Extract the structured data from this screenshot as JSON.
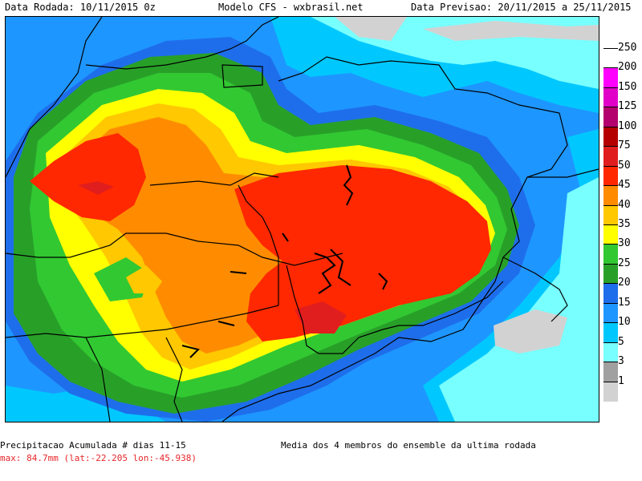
{
  "header": {
    "left": "Data Rodada: 10/11/2015 0z",
    "center": "Modelo CFS - wxbrasil.net",
    "right": "Data Previsao: 20/11/2015 a 25/11/2015"
  },
  "footer": {
    "title": "Precipitacao Acumulada # dias 11-15",
    "max": "max: 84.7mm (lat:-22.205 lon:-45.938)",
    "note": "Media dos 4 membros do ensemble da ultima rodada"
  },
  "legend": {
    "labels": [
      "250",
      "200",
      "150",
      "125",
      "100",
      "75",
      "50",
      "45",
      "40",
      "35",
      "30",
      "25",
      "20",
      "15",
      "10",
      "5",
      "3",
      "1"
    ],
    "colors": [
      "#ffffff",
      "#ff00ff",
      "#e000c8",
      "#b4006e",
      "#b40000",
      "#e11e1e",
      "#ff2800",
      "#ff8c00",
      "#ffc800",
      "#ffff00",
      "#32c832",
      "#28a028",
      "#1e6eeb",
      "#1e96ff",
      "#00c8ff",
      "#78ffff",
      "#a0a0a0",
      "#d2d2d2"
    ]
  },
  "map_colors": {
    "lightblue": "#78ffff",
    "cyan": "#00c8ff",
    "blue": "#1e96ff",
    "darkblue": "#1e6eeb",
    "darkgreen": "#28a028",
    "green": "#32c832",
    "yellow": "#ffff00",
    "gold": "#ffc800",
    "orange": "#ff8c00",
    "red": "#ff2800",
    "darkred": "#e11e1e",
    "gray": "#a0a0a0",
    "lightgray": "#d2d2d2"
  }
}
